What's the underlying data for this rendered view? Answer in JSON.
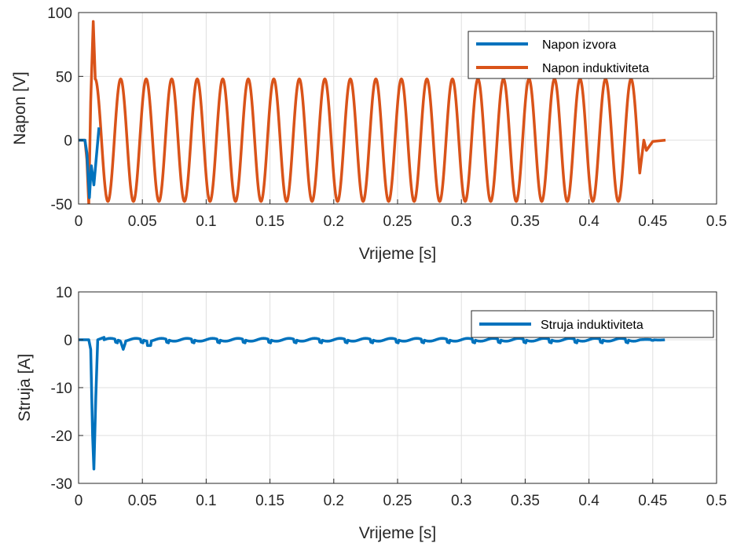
{
  "chart_data": [
    {
      "type": "line",
      "xlabel": "Vrijeme [s]",
      "ylabel": "Napon [V]",
      "xlim": [
        0,
        0.5
      ],
      "ylim": [
        -50,
        100
      ],
      "xticks": [
        "0",
        "0.05",
        "0.1",
        "0.15",
        "0.2",
        "0.25",
        "0.3",
        "0.35",
        "0.4",
        "0.45",
        "0.5"
      ],
      "yticks": [
        "-50",
        "0",
        "50",
        "100"
      ],
      "grid": true,
      "legend_position": "top-right",
      "series": [
        {
          "name": "Napon izvora",
          "color": "#0072BD",
          "x": [
            0,
            0.005,
            0.0065,
            0.0085,
            0.01,
            0.012,
            0.016
          ],
          "y": [
            0,
            0,
            -10,
            -45,
            -20,
            -35,
            10
          ]
        },
        {
          "name": "Napon induktiviteta",
          "color": "#D95319",
          "description_of_shape": "sine 48 V amplitude, 50 Hz from ~0.012 s to 0.44 s after an initial 93 V spike",
          "x": [
            0,
            0.005,
            0.0065,
            0.008,
            0.0095,
            0.0115,
            0.013,
            0.015,
            0.44,
            0.443,
            0.445,
            0.45,
            0.46
          ],
          "y": [
            0,
            0,
            -15,
            -50,
            30,
            93,
            50,
            0,
            48,
            0,
            -8,
            -1,
            0
          ]
        }
      ]
    },
    {
      "type": "line",
      "xlabel": "Vrijeme [s]",
      "ylabel": "Struja [A]",
      "xlim": [
        0,
        0.5
      ],
      "ylim": [
        -30,
        10
      ],
      "xticks": [
        "0",
        "0.05",
        "0.1",
        "0.15",
        "0.2",
        "0.25",
        "0.3",
        "0.35",
        "0.4",
        "0.45",
        "0.5"
      ],
      "yticks": [
        "-30",
        "-20",
        "-10",
        "0",
        "10"
      ],
      "grid": true,
      "legend_position": "top-right",
      "series": [
        {
          "name": "Struja induktiviteta",
          "color": "#0072BD",
          "x": [
            0,
            0.008,
            0.0095,
            0.011,
            0.012,
            0.0135,
            0.015,
            0.02,
            0.034,
            0.035,
            0.036,
            0.46
          ],
          "y": [
            0,
            0,
            -2,
            -20,
            -27,
            -12,
            0,
            0.5,
            0,
            -2,
            0,
            0
          ]
        }
      ]
    }
  ]
}
